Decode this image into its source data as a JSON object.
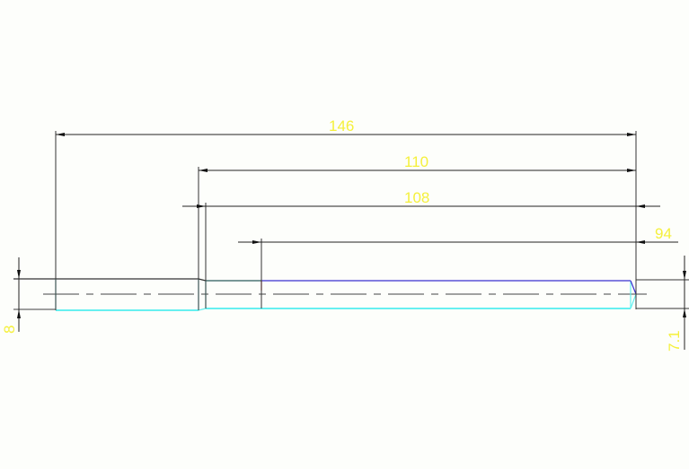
{
  "drawing": {
    "dimensions": {
      "overall_length": "146",
      "length_110": "110",
      "length_108": "108",
      "length_94": "94",
      "left_diameter": "8",
      "right_diameter": "7.1"
    },
    "colors": {
      "dimension_text": "#f5f03c",
      "dimension_line": "#333333",
      "part_outline_cyan": "#66f0f0",
      "part_outline_blue": "#3a2fd0",
      "background": "#fdfefb"
    }
  }
}
